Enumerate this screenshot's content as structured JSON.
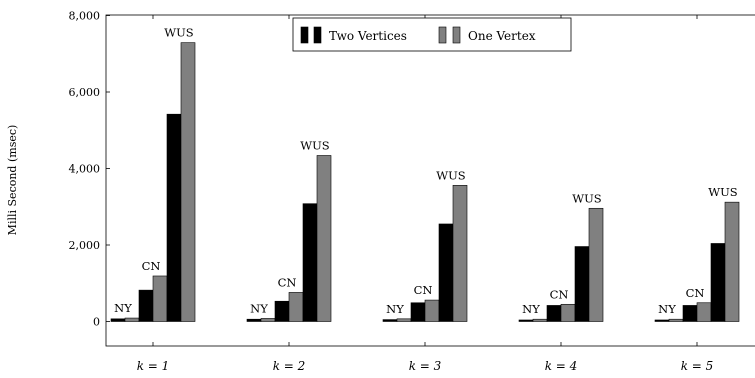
{
  "chart_data": {
    "type": "bar",
    "ylabel": "Milli Second (msec)",
    "xlabel": "",
    "ylim": [
      -700,
      8000
    ],
    "yticks": [
      0,
      2000,
      4000,
      6000,
      8000
    ],
    "ytick_labels": [
      "0",
      "2,000",
      "4,000",
      "6,000",
      "8,000"
    ],
    "categories": [
      "k = 1",
      "k = 2",
      "k = 3",
      "k = 4",
      "k = 5"
    ],
    "cities": [
      "NY",
      "CN",
      "WUS"
    ],
    "series": [
      {
        "name": "Two Vertices",
        "color": "#000000",
        "values": [
          [
            70,
            820,
            5420
          ],
          [
            60,
            530,
            3080
          ],
          [
            50,
            490,
            2550
          ],
          [
            40,
            420,
            1960
          ],
          [
            40,
            420,
            2040
          ]
        ]
      },
      {
        "name": "One Vertex",
        "color": "#808080",
        "values": [
          [
            90,
            1190,
            7290
          ],
          [
            80,
            760,
            4340
          ],
          [
            70,
            560,
            3560
          ],
          [
            60,
            450,
            2960
          ],
          [
            60,
            490,
            3120
          ]
        ]
      }
    ],
    "grid": false,
    "legend_position": "top"
  }
}
